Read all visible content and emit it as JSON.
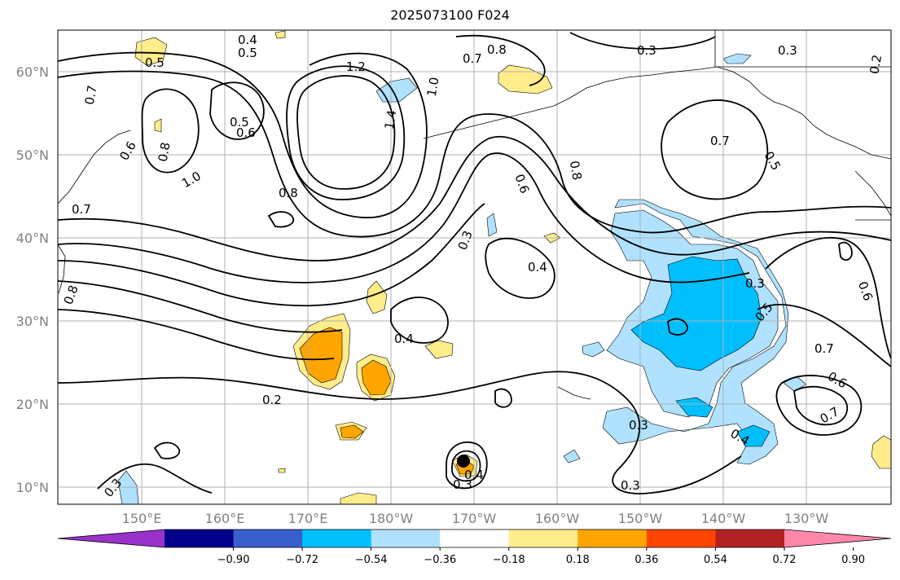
{
  "title": "2025073100 F024",
  "lat_labels": [
    "60°N",
    "50°N",
    "40°N",
    "30°N",
    "20°N",
    "10°N"
  ],
  "lon_labels": [
    "150°E",
    "160°E",
    "170°E",
    "180°W",
    "170°W",
    "160°W",
    "150°W",
    "140°W",
    "130°W"
  ],
  "colorbar": {
    "tick_labels": [
      "−0.90",
      "−0.72",
      "−0.54",
      "−0.36",
      "−0.18",
      "0.18",
      "0.36",
      "0.54",
      "0.72",
      "0.90"
    ],
    "colors": [
      "#9932CC",
      "#00008B",
      "#3A5FCD",
      "#00BFFF",
      "#B0E2FF",
      "#FFFFFF",
      "#FFEC8B",
      "#FFA500",
      "#FF4500",
      "#B22222",
      "#FF88AA"
    ]
  },
  "contour_labels": [
    "0.4",
    "0.5",
    "0.5",
    "0.7",
    "0.8",
    "0.3",
    "0.3",
    "0.2",
    "1.2",
    "1.0",
    "1.4",
    "0.8",
    "0.6",
    "0.7",
    "0.5",
    "0.6",
    "0.8",
    "1.0",
    "0.7",
    "0.8",
    "0.6",
    "0.3",
    "0.4",
    "0.4",
    "0.2",
    "0.3",
    "0.4",
    "0.3",
    "0.3",
    "0.3",
    "0.5",
    "0.7",
    "0.6",
    "0.7",
    "0.4",
    "0.3",
    "0.5",
    "0.6",
    "0.8",
    "0.7"
  ],
  "colors": {
    "axis_text": "#808080",
    "contour": "#000000",
    "grid": "#b0b0b0"
  }
}
